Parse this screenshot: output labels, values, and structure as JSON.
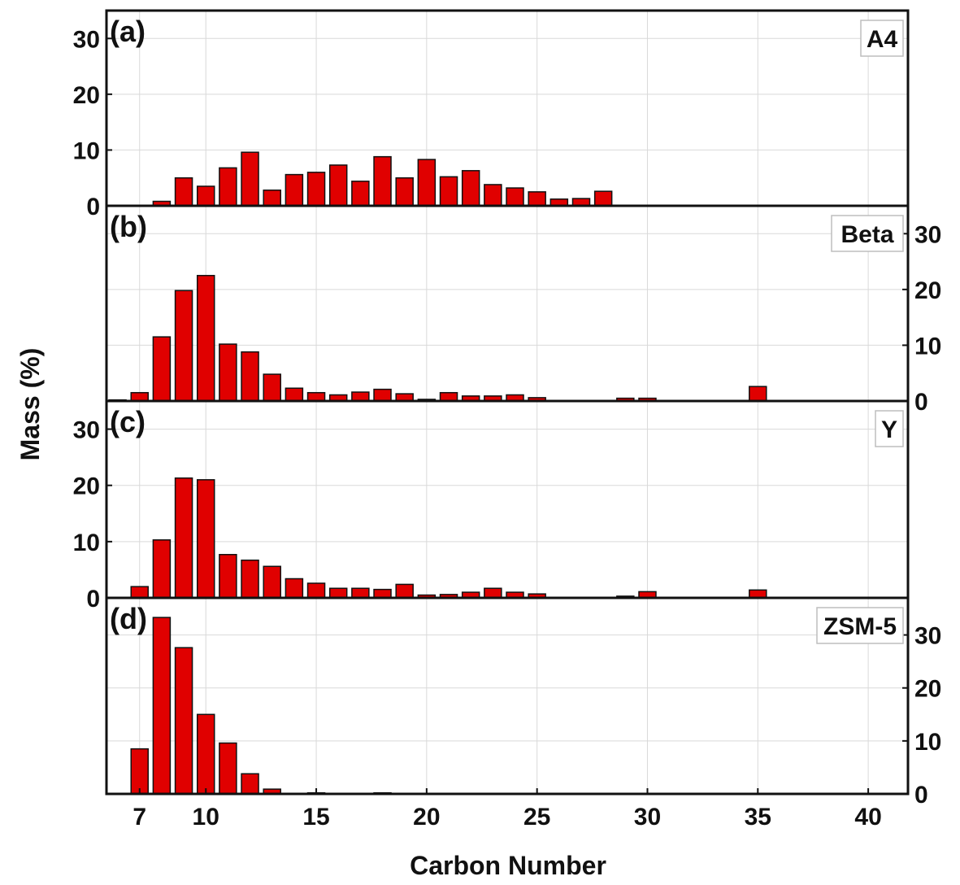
{
  "chart_data": {
    "type": "bar",
    "xlabel": "Carbon Number",
    "ylabel": "Mass (%)",
    "xlim": [
      5.5,
      41.8
    ],
    "x_ticks": [
      7,
      10,
      15,
      20,
      25,
      30,
      35,
      40
    ],
    "grid": true,
    "bar_color": "#e00000",
    "panels": [
      {
        "letter": "(a)",
        "name": "A4",
        "ylim": [
          0,
          35
        ],
        "y_ticks": [
          0,
          10,
          20,
          30
        ],
        "y_axis_side": "left",
        "x": [
          8,
          9,
          10,
          11,
          12,
          13,
          14,
          15,
          16,
          17,
          18,
          19,
          20,
          21,
          22,
          23,
          24,
          25,
          26,
          27,
          28
        ],
        "values": [
          0.8,
          5.0,
          3.5,
          6.8,
          9.6,
          2.8,
          5.6,
          6.0,
          7.3,
          4.4,
          8.8,
          5.0,
          8.3,
          5.2,
          6.3,
          3.8,
          3.2,
          2.5,
          1.2,
          1.3,
          2.6
        ]
      },
      {
        "letter": "(b)",
        "name": "Beta",
        "ylim": [
          0,
          35
        ],
        "y_ticks": [
          0,
          10,
          20,
          30
        ],
        "y_axis_side": "right",
        "x": [
          6,
          7,
          8,
          9,
          10,
          11,
          12,
          13,
          14,
          15,
          16,
          17,
          18,
          19,
          20,
          21,
          22,
          23,
          24,
          25,
          29,
          30,
          35
        ],
        "values": [
          0.2,
          1.5,
          11.5,
          19.8,
          22.5,
          10.2,
          8.8,
          4.8,
          2.3,
          1.5,
          1.1,
          1.6,
          2.1,
          1.3,
          0.3,
          1.5,
          0.9,
          0.9,
          1.1,
          0.6,
          0.5,
          0.5,
          2.6
        ]
      },
      {
        "letter": "(c)",
        "name": "Y",
        "ylim": [
          0,
          35
        ],
        "y_ticks": [
          0,
          10,
          20,
          30
        ],
        "y_axis_side": "left",
        "x": [
          7,
          8,
          9,
          10,
          11,
          12,
          13,
          14,
          15,
          16,
          17,
          18,
          19,
          20,
          21,
          22,
          23,
          24,
          25,
          29,
          30,
          35
        ],
        "values": [
          2.0,
          10.3,
          21.3,
          21.0,
          7.7,
          6.7,
          5.6,
          3.4,
          2.6,
          1.7,
          1.7,
          1.5,
          2.4,
          0.5,
          0.6,
          1.0,
          1.7,
          1.0,
          0.7,
          0.3,
          1.1,
          1.4
        ]
      },
      {
        "letter": "(d)",
        "name": "ZSM-5",
        "ylim": [
          0,
          37
        ],
        "y_ticks": [
          0,
          10,
          20,
          30
        ],
        "y_axis_side": "right",
        "x": [
          7,
          8,
          9,
          10,
          11,
          12,
          13,
          15,
          18
        ],
        "values": [
          8.5,
          33.3,
          27.6,
          15.0,
          9.6,
          3.8,
          0.9,
          0.2,
          0.2
        ]
      }
    ]
  }
}
